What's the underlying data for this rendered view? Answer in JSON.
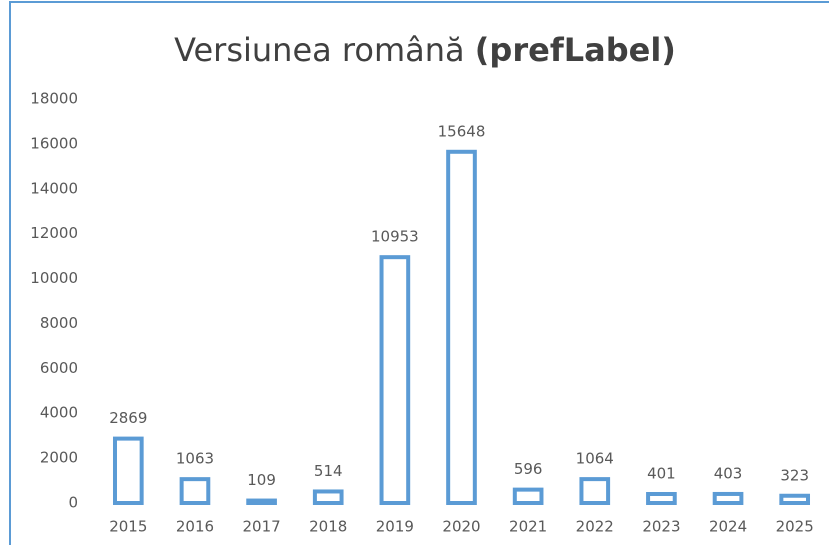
{
  "chart_data": {
    "type": "bar",
    "title": "Versiunea română",
    "title_bold": "(prefLabel)",
    "categories": [
      "2015",
      "2016",
      "2017",
      "2018",
      "2019",
      "2020",
      "2021",
      "2022",
      "2023",
      "2024",
      "2025"
    ],
    "values": [
      2869,
      1063,
      109,
      514,
      10953,
      15648,
      596,
      1064,
      401,
      403,
      323
    ],
    "color": "#5b9bd5",
    "ylim": [
      0,
      18000
    ],
    "yticks": [
      0,
      2000,
      4000,
      6000,
      8000,
      10000,
      12000,
      14000,
      16000,
      18000
    ],
    "grid": false
  }
}
